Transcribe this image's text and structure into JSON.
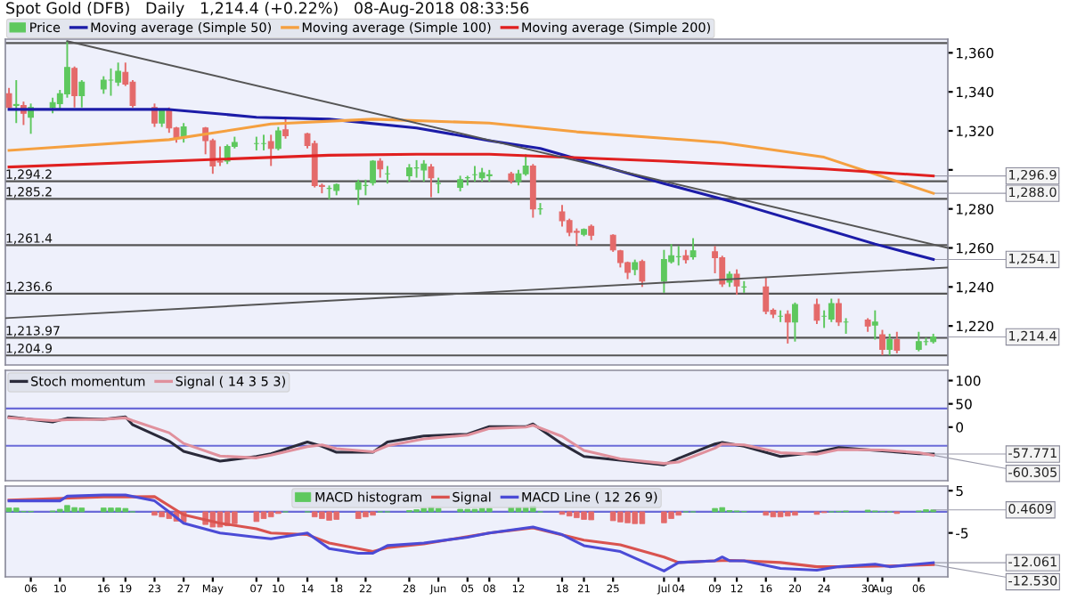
{
  "chart_data": [
    {
      "type": "candlestick",
      "title": "Spot Gold (DFB)   Daily   1,214.4 (+0.22%)   08-Aug-2018 08:33:56",
      "xlim": [
        "2018-04-02T12:00",
        "2018-08-10"
      ],
      "ylim": [
        1200,
        1367
      ],
      "yticks": [
        {
          "value": 1220,
          "label": "1,220"
        },
        {
          "value": 1240,
          "label": "1,240"
        },
        {
          "value": 1260,
          "label": "1,260"
        },
        {
          "value": 1280,
          "label": "1,280"
        },
        {
          "value": 1300,
          "label": null
        },
        {
          "value": 1320,
          "label": "1,320"
        },
        {
          "value": 1340,
          "label": "1,340"
        },
        {
          "value": 1360,
          "label": "1,360"
        }
      ],
      "tick_labels": "y",
      "legend": "top left",
      "series": [
        {
          "name": "Price",
          "color": "#5ec85e",
          "x": [
            "2018-04-03",
            "2018-04-04",
            "2018-04-05",
            "2018-04-06",
            "2018-04-09",
            "2018-04-10",
            "2018-04-11",
            "2018-04-12",
            "2018-04-13",
            "2018-04-16",
            "2018-04-17",
            "2018-04-18",
            "2018-04-19",
            "2018-04-20",
            "2018-04-23",
            "2018-04-24",
            "2018-04-25",
            "2018-04-26",
            "2018-04-27",
            "2018-04-30",
            "2018-05-01",
            "2018-05-02",
            "2018-05-03",
            "2018-05-04",
            "2018-05-07",
            "2018-05-08",
            "2018-05-09",
            "2018-05-10",
            "2018-05-11",
            "2018-05-14",
            "2018-05-15",
            "2018-05-16",
            "2018-05-17",
            "2018-05-18",
            "2018-05-21",
            "2018-05-22",
            "2018-05-23",
            "2018-05-24",
            "2018-05-25",
            "2018-05-28",
            "2018-05-29",
            "2018-05-30",
            "2018-05-31",
            "2018-06-01",
            "2018-06-04",
            "2018-06-05",
            "2018-06-06",
            "2018-06-07",
            "2018-06-08",
            "2018-06-11",
            "2018-06-12",
            "2018-06-13",
            "2018-06-14",
            "2018-06-15",
            "2018-06-18",
            "2018-06-19",
            "2018-06-20",
            "2018-06-21",
            "2018-06-22",
            "2018-06-25",
            "2018-06-26",
            "2018-06-27",
            "2018-06-28",
            "2018-06-29",
            "2018-07-02",
            "2018-07-03",
            "2018-07-04",
            "2018-07-05",
            "2018-07-06",
            "2018-07-09",
            "2018-07-10",
            "2018-07-11",
            "2018-07-12",
            "2018-07-13",
            "2018-07-16",
            "2018-07-17",
            "2018-07-18",
            "2018-07-19",
            "2018-07-20",
            "2018-07-23",
            "2018-07-24",
            "2018-07-25",
            "2018-07-26",
            "2018-07-27",
            "2018-07-30",
            "2018-07-31",
            "2018-08-01",
            "2018-08-02",
            "2018-08-03",
            "2018-08-06",
            "2018-08-07",
            "2018-08-08"
          ],
          "ohlc": [
            [
              1339,
              1342,
              1331,
              1332
            ],
            [
              1333,
              1346,
              1324,
              1333.5
            ],
            [
              1333,
              1335,
              1323,
              1329
            ],
            [
              1327,
              1334,
              1318.5,
              1332
            ],
            [
              1332,
              1337,
              1329,
              1334.5
            ],
            [
              1334,
              1341,
              1331,
              1339
            ],
            [
              1339,
              1366,
              1337,
              1352.5
            ],
            [
              1352,
              1353,
              1332,
              1338
            ],
            [
              1338,
              1346,
              1332,
              1345
            ],
            [
              1341.5,
              1348,
              1339,
              1346
            ],
            [
              1346,
              1352,
              1338,
              1346
            ],
            [
              1345,
              1355,
              1343,
              1350.5
            ],
            [
              1350,
              1355,
              1343,
              1344
            ],
            [
              1345,
              1346,
              1332,
              1333
            ],
            [
              1332,
              1334,
              1322,
              1324
            ],
            [
              1324,
              1331,
              1322,
              1330.5
            ],
            [
              1331,
              1332,
              1319,
              1321.5
            ],
            [
              1321.5,
              1322,
              1314,
              1316.5
            ],
            [
              1316.5,
              1324,
              1314,
              1322
            ],
            [
              1321.5,
              1322,
              1308,
              1315
            ],
            [
              1315,
              1316,
              1298,
              1302
            ],
            [
              1304.5,
              1312,
              1302,
              1304
            ],
            [
              1304.5,
              1313,
              1303,
              1312
            ],
            [
              1312,
              1317,
              1311,
              1314
            ],
            [
              1313.5,
              1317,
              1310,
              1313.5
            ],
            [
              1313.5,
              1318,
              1310,
              1313.5
            ],
            [
              1314.5,
              1318,
              1302,
              1311
            ],
            [
              1311,
              1322,
              1310,
              1320
            ],
            [
              1320.5,
              1327,
              1316,
              1317.5
            ],
            [
              1318.5,
              1319,
              1311,
              1312.5
            ],
            [
              1313.5,
              1315,
              1291,
              1292
            ],
            [
              1292,
              1293,
              1288,
              1291.5
            ],
            [
              1290.5,
              1292,
              1285,
              1290.5
            ],
            [
              1289.5,
              1293,
              1287,
              1292.5
            ],
            [
              1290,
              1295,
              1282,
              1293.5
            ],
            [
              1292,
              1295,
              1287,
              1292
            ],
            [
              1293.5,
              1305,
              1292,
              1304.5
            ],
            [
              1304.5,
              1306,
              1296,
              1300.5
            ],
            [
              1298,
              1302,
              1293,
              1298
            ],
            [
              1297,
              1303,
              1294,
              1301
            ],
            [
              1301,
              1305,
              1296,
              1301
            ],
            [
              1300,
              1305,
              1294,
              1303
            ],
            [
              1301.5,
              1303,
              1286,
              1296
            ],
            [
              1293,
              1296,
              1288,
              1293
            ],
            [
              1291,
              1297,
              1289,
              1295
            ],
            [
              1296,
              1297,
              1292,
              1296
            ],
            [
              1297.5,
              1302,
              1294,
              1297.5
            ],
            [
              1296,
              1301,
              1294,
              1298.5
            ],
            [
              1297,
              1300,
              1294,
              1297.5
            ],
            [
              1298,
              1299,
              1293,
              1294.5
            ],
            [
              1294,
              1300,
              1292,
              1298
            ],
            [
              1298,
              1308,
              1297,
              1302
            ],
            [
              1302,
              1303,
              1275.5,
              1280
            ],
            [
              1280,
              1283,
              1277,
              1280
            ],
            [
              1278.5,
              1282,
              1271,
              1274
            ],
            [
              1274,
              1275,
              1266,
              1268
            ],
            [
              1268.5,
              1270,
              1261,
              1268
            ],
            [
              1267,
              1270,
              1266,
              1269.5
            ],
            [
              1271,
              1272,
              1264,
              1266.5
            ],
            [
              1266.5,
              1267,
              1258,
              1259
            ],
            [
              1258.5,
              1259,
              1250,
              1252.5
            ],
            [
              1252.5,
              1253,
              1244,
              1247.5
            ],
            [
              1249,
              1254,
              1246,
              1252.5
            ],
            [
              1253,
              1254,
              1240,
              1243
            ],
            [
              1243,
              1259,
              1237,
              1254
            ],
            [
              1253,
              1262,
              1252,
              1256
            ],
            [
              1255.5,
              1261,
              1251,
              1255.5
            ],
            [
              1256,
              1259,
              1252,
              1254
            ],
            [
              1255.5,
              1265,
              1254,
              1258.5
            ],
            [
              1258,
              1261,
              1247,
              1255
            ],
            [
              1255,
              1256,
              1240,
              1241.5
            ],
            [
              1242.5,
              1248,
              1240,
              1246.5
            ],
            [
              1246.5,
              1249,
              1236,
              1240.5
            ],
            [
              1240,
              1243,
              1237,
              1240
            ],
            [
              1240,
              1245,
              1226,
              1227.5
            ],
            [
              1228,
              1229,
              1224,
              1226
            ],
            [
              1225,
              1228,
              1222,
              1225
            ],
            [
              1226,
              1228,
              1211,
              1222
            ],
            [
              1222,
              1232,
              1212,
              1231
            ],
            [
              1231,
              1234,
              1221,
              1223
            ],
            [
              1225,
              1228,
              1219,
              1225
            ],
            [
              1223.5,
              1234,
              1222,
              1231.5
            ],
            [
              1231.5,
              1234,
              1220,
              1222
            ],
            [
              1222,
              1224,
              1216,
              1222
            ],
            [
              1223,
              1224,
              1217,
              1220
            ],
            [
              1220.5,
              1228,
              1213,
              1222
            ],
            [
              1215.5,
              1218,
              1205,
              1208
            ],
            [
              1208,
              1216,
              1205,
              1213
            ],
            [
              1213,
              1217,
              1206,
              1207.5
            ],
            [
              1208,
              1217,
              1207,
              1212
            ],
            [
              1212,
              1214,
              1210,
              1212
            ],
            [
              1212,
              1216,
              1211,
              1214.4
            ]
          ],
          "colors": [
            "#e46a6a",
            "#5ec85e",
            "#e46a6a",
            "#5ec85e",
            "#5ec85e",
            "#5ec85e",
            "#5ec85e",
            "#e46a6a",
            "#5ec85e",
            "#5ec85e",
            "#5ec85e",
            "#5ec85e",
            "#e46a6a",
            "#e46a6a",
            "#e46a6a",
            "#5ec85e",
            "#e46a6a",
            "#e46a6a",
            "#5ec85e",
            "#e46a6a",
            "#e46a6a",
            "#e46a6a",
            "#5ec85e",
            "#5ec85e",
            "#5ec85e",
            "#5ec85e",
            "#e46a6a",
            "#5ec85e",
            "#e46a6a",
            "#e46a6a",
            "#e46a6a",
            "#e46a6a",
            "#5ec85e",
            "#5ec85e",
            "#5ec85e",
            "#5ec85e",
            "#5ec85e",
            "#e46a6a",
            "#5ec85e",
            "#5ec85e",
            "#5ec85e",
            "#5ec85e",
            "#e46a6a",
            "#5ec85e",
            "#5ec85e",
            "#5ec85e",
            "#5ec85e",
            "#5ec85e",
            "#5ec85e",
            "#e46a6a",
            "#5ec85e",
            "#5ec85e",
            "#e46a6a",
            "#5ec85e",
            "#e46a6a",
            "#e46a6a",
            "#e46a6a",
            "#5ec85e",
            "#e46a6a",
            "#e46a6a",
            "#e46a6a",
            "#e46a6a",
            "#5ec85e",
            "#e46a6a",
            "#5ec85e",
            "#5ec85e",
            "#5ec85e",
            "#e46a6a",
            "#5ec85e",
            "#e46a6a",
            "#e46a6a",
            "#5ec85e",
            "#e46a6a",
            "#5ec85e",
            "#e46a6a",
            "#e46a6a",
            "#5ec85e",
            "#e46a6a",
            "#5ec85e",
            "#e46a6a",
            "#5ec85e",
            "#5ec85e",
            "#e46a6a",
            "#5ec85e",
            "#e46a6a",
            "#5ec85e",
            "#e46a6a",
            "#5ec85e",
            "#e46a6a",
            "#5ec85e",
            "#5ec85e",
            "#5ec85e"
          ]
        },
        {
          "name": "Moving average (Simple 50)",
          "type": "line",
          "color": "#1c1ca8",
          "x": [
            "2018-04-03",
            "2018-04-25",
            "2018-05-07",
            "2018-05-17",
            "2018-05-29",
            "2018-06-08",
            "2018-06-15",
            "2018-07-02",
            "2018-07-12",
            "2018-07-31",
            "2018-08-08"
          ],
          "values": [
            1331,
            1331,
            1327,
            1326,
            1321.5,
            1315,
            1311,
            1293,
            1283,
            1262,
            1254.1
          ]
        },
        {
          "name": "Moving average (Simple 100)",
          "type": "line",
          "color": "#f5a040",
          "x": [
            "2018-04-03",
            "2018-04-25",
            "2018-05-09",
            "2018-05-23",
            "2018-06-08",
            "2018-06-20",
            "2018-07-10",
            "2018-07-24",
            "2018-08-08"
          ],
          "values": [
            1310,
            1315.5,
            1323.5,
            1326,
            1324,
            1319.5,
            1314,
            1306.5,
            1288.0
          ]
        },
        {
          "name": "Moving average (Simple 200)",
          "type": "line",
          "color": "#e02020",
          "x": [
            "2018-04-03",
            "2018-04-25",
            "2018-05-17",
            "2018-05-29",
            "2018-06-08",
            "2018-07-02",
            "2018-07-24",
            "2018-08-08"
          ],
          "values": [
            1301.5,
            1304.5,
            1307.5,
            1308,
            1308,
            1304.5,
            1300.5,
            1296.9
          ]
        },
        {
          "type": "line",
          "color": "#555555",
          "x": [
            "2018-04-11",
            "2018-08-10"
          ],
          "values": [
            1366,
            1260
          ]
        },
        {
          "type": "line",
          "color": "#555555",
          "x": [
            "2018-04-02T12:00",
            "2018-08-10"
          ],
          "values": [
            1224,
            1250
          ]
        }
      ],
      "ref_lines": [
        {
          "axis": "y",
          "value": 1365,
          "label": null,
          "color": "#555555"
        },
        {
          "axis": "y",
          "value": 1294.2,
          "label": "1,294.2",
          "color": "#555555"
        },
        {
          "axis": "y",
          "value": 1285.2,
          "label": "1,285.2",
          "color": "#555555"
        },
        {
          "axis": "y",
          "value": 1261.4,
          "label": "1,261.4",
          "color": "#555555"
        },
        {
          "axis": "y",
          "value": 1236.6,
          "label": "1,236.6",
          "color": "#555555"
        },
        {
          "axis": "y",
          "value": 1213.97,
          "label": "1,213.97",
          "color": "#555555"
        },
        {
          "axis": "y",
          "value": 1204.9,
          "label": "1,204.9",
          "color": "#555555"
        }
      ],
      "annotations": [
        {
          "text": "1,296.9",
          "x": "2018-08-08",
          "y": 1296.9
        },
        {
          "text": "1,288.0",
          "x": "2018-08-08",
          "y": 1288.0
        },
        {
          "text": "1,254.1",
          "x": "2018-08-08",
          "y": 1254.1
        },
        {
          "text": "1,214.4",
          "x": "2018-08-08",
          "y": 1214.4
        }
      ]
    },
    {
      "type": "line",
      "xlim": [
        "2018-04-02T12:00",
        "2018-08-10"
      ],
      "ylim": [
        -115,
        122
      ],
      "yticks": [
        100,
        50,
        0
      ],
      "tick_labels": "y",
      "legend": "top left",
      "series": [
        {
          "name": "Stoch momentum",
          "color": "#2a2a3a",
          "x": [
            "2018-04-03",
            "2018-04-09",
            "2018-04-11",
            "2018-04-16",
            "2018-04-19",
            "2018-04-20",
            "2018-04-25",
            "2018-04-27",
            "2018-05-02",
            "2018-05-07",
            "2018-05-09",
            "2018-05-14",
            "2018-05-16",
            "2018-05-18",
            "2018-05-23",
            "2018-05-25",
            "2018-05-30",
            "2018-06-05",
            "2018-06-08",
            "2018-06-13",
            "2018-06-14",
            "2018-06-18",
            "2018-06-21",
            "2018-06-26",
            "2018-07-02",
            "2018-07-04",
            "2018-07-09",
            "2018-07-10",
            "2018-07-13",
            "2018-07-18",
            "2018-07-23",
            "2018-07-26",
            "2018-08-01",
            "2018-08-06",
            "2018-08-08"
          ],
          "values": [
            22,
            11,
            19,
            17,
            22,
            5,
            -30,
            -52,
            -73,
            -63,
            -57,
            -32,
            -41,
            -54,
            -54,
            -32,
            -19,
            -15,
            1,
            1,
            7,
            -36,
            -63,
            -71,
            -81,
            -67,
            -36,
            -33,
            -41,
            -63,
            -54,
            -44,
            -51,
            -57,
            -57.771
          ]
        },
        {
          "name": "Signal ( 14 3 5 3)",
          "color": "#e0909c",
          "x": [
            "2018-04-03",
            "2018-04-09",
            "2018-04-11",
            "2018-04-16",
            "2018-04-19",
            "2018-04-20",
            "2018-04-25",
            "2018-04-27",
            "2018-05-02",
            "2018-05-07",
            "2018-05-09",
            "2018-05-14",
            "2018-05-16",
            "2018-05-18",
            "2018-05-23",
            "2018-05-25",
            "2018-05-30",
            "2018-06-05",
            "2018-06-08",
            "2018-06-13",
            "2018-06-14",
            "2018-06-18",
            "2018-06-21",
            "2018-06-26",
            "2018-07-02",
            "2018-07-04",
            "2018-07-09",
            "2018-07-10",
            "2018-07-13",
            "2018-07-18",
            "2018-07-23",
            "2018-07-26",
            "2018-08-01",
            "2018-08-06",
            "2018-08-08"
          ],
          "values": [
            20,
            14,
            16,
            17,
            20,
            14,
            -12,
            -35,
            -62,
            -66,
            -60,
            -42,
            -38,
            -46,
            -53,
            -40,
            -25,
            -17,
            -3,
            0,
            4,
            -20,
            -50,
            -68,
            -78,
            -75,
            -45,
            -36,
            -38,
            -55,
            -58,
            -48,
            -49,
            -55,
            -60.305
          ]
        }
      ],
      "ref_lines": [
        {
          "axis": "y",
          "value": 40,
          "label": null,
          "color": "#6a6ad8"
        },
        {
          "axis": "y",
          "value": -40,
          "label": null,
          "color": "#6a6ad8"
        }
      ],
      "annotations": [
        {
          "text": "-57.771",
          "x": "2018-08-08",
          "y": -57.771
        },
        {
          "text": "-60.305",
          "x": "2018-08-08",
          "y": -60.305
        }
      ]
    },
    {
      "type": "bar",
      "xlim": [
        "2018-04-02T12:00",
        "2018-08-10"
      ],
      "ylim": [
        -15.4,
        6.1
      ],
      "yticks": [
        5,
        -5
      ],
      "legend": "top",
      "xticks": [
        {
          "value": "2018-04-06",
          "label": "06"
        },
        {
          "value": "2018-04-10",
          "label": "10"
        },
        {
          "value": "2018-04-16",
          "label": "16"
        },
        {
          "value": "2018-04-19",
          "label": "19"
        },
        {
          "value": "2018-04-23",
          "label": "23"
        },
        {
          "value": "2018-04-27",
          "label": "27"
        },
        {
          "value": "2018-05-01",
          "label": "May"
        },
        {
          "value": "2018-05-07",
          "label": "07"
        },
        {
          "value": "2018-05-10",
          "label": "10"
        },
        {
          "value": "2018-05-14",
          "label": "14"
        },
        {
          "value": "2018-05-18",
          "label": "18"
        },
        {
          "value": "2018-05-22",
          "label": "22"
        },
        {
          "value": "2018-05-28",
          "label": "28"
        },
        {
          "value": "2018-06-01",
          "label": "Jun"
        },
        {
          "value": "2018-06-05",
          "label": "05"
        },
        {
          "value": "2018-06-08",
          "label": "08"
        },
        {
          "value": "2018-06-12",
          "label": "12"
        },
        {
          "value": "2018-06-18",
          "label": "18"
        },
        {
          "value": "2018-06-21",
          "label": "21"
        },
        {
          "value": "2018-06-25",
          "label": "25"
        },
        {
          "value": "2018-07-02",
          "label": "Jul"
        },
        {
          "value": "2018-07-04",
          "label": "04"
        },
        {
          "value": "2018-07-09",
          "label": "09"
        },
        {
          "value": "2018-07-12",
          "label": "12"
        },
        {
          "value": "2018-07-16",
          "label": "16"
        },
        {
          "value": "2018-07-20",
          "label": "20"
        },
        {
          "value": "2018-07-24",
          "label": "24"
        },
        {
          "value": "2018-07-30",
          "label": "30"
        },
        {
          "value": "2018-08-01",
          "label": "Aug"
        },
        {
          "value": "2018-08-06",
          "label": "06"
        }
      ],
      "series": [
        {
          "name": "MACD histogram",
          "color": "#5ec85e",
          "x": [
            "2018-04-03",
            "2018-04-04",
            "2018-04-05",
            "2018-04-06",
            "2018-04-09",
            "2018-04-10",
            "2018-04-11",
            "2018-04-12",
            "2018-04-13",
            "2018-04-16",
            "2018-04-17",
            "2018-04-18",
            "2018-04-19",
            "2018-04-20",
            "2018-04-23",
            "2018-04-24",
            "2018-04-25",
            "2018-04-26",
            "2018-04-27",
            "2018-04-30",
            "2018-05-01",
            "2018-05-02",
            "2018-05-03",
            "2018-05-04",
            "2018-05-07",
            "2018-05-08",
            "2018-05-09",
            "2018-05-10",
            "2018-05-11",
            "2018-05-14",
            "2018-05-15",
            "2018-05-16",
            "2018-05-17",
            "2018-05-18",
            "2018-05-21",
            "2018-05-22",
            "2018-05-23",
            "2018-05-24",
            "2018-05-25",
            "2018-05-28",
            "2018-05-29",
            "2018-05-30",
            "2018-05-31",
            "2018-06-01",
            "2018-06-04",
            "2018-06-05",
            "2018-06-06",
            "2018-06-07",
            "2018-06-08",
            "2018-06-11",
            "2018-06-12",
            "2018-06-13",
            "2018-06-14",
            "2018-06-15",
            "2018-06-18",
            "2018-06-19",
            "2018-06-20",
            "2018-06-21",
            "2018-06-22",
            "2018-06-25",
            "2018-06-26",
            "2018-06-27",
            "2018-06-28",
            "2018-06-29",
            "2018-07-02",
            "2018-07-03",
            "2018-07-04",
            "2018-07-05",
            "2018-07-06",
            "2018-07-09",
            "2018-07-10",
            "2018-07-11",
            "2018-07-12",
            "2018-07-13",
            "2018-07-16",
            "2018-07-17",
            "2018-07-18",
            "2018-07-19",
            "2018-07-20",
            "2018-07-23",
            "2018-07-24",
            "2018-07-25",
            "2018-07-26",
            "2018-07-27",
            "2018-07-30",
            "2018-07-31",
            "2018-08-01",
            "2018-08-02",
            "2018-08-03",
            "2018-08-06",
            "2018-08-07",
            "2018-08-08"
          ],
          "values": [
            0.9,
            0.9,
            0.1,
            0.1,
            0.2,
            0.6,
            1.5,
            1.0,
            0.9,
            0.9,
            0.9,
            0.9,
            0.8,
            0,
            -0.8,
            -1.2,
            -1.6,
            -2.2,
            -2.4,
            -3.0,
            -3.6,
            -3.6,
            -3.3,
            -2.8,
            -2.3,
            -1.6,
            -1.2,
            -0.4,
            0,
            0,
            -1.2,
            -1.6,
            -2.0,
            -1.8,
            -1.6,
            -1.2,
            -0.8,
            0,
            0,
            0.3,
            0.5,
            0.8,
            1.0,
            0.8,
            0.6,
            0.6,
            0.6,
            0.8,
            0.8,
            1.0,
            1.0,
            1.0,
            1.3,
            0,
            -0.6,
            -1.0,
            -1.4,
            -1.8,
            -1.9,
            -2.1,
            -2.4,
            -2.6,
            -2.8,
            -2.8,
            -2.6,
            -1.6,
            -0.8,
            0,
            0,
            0.8,
            1.0,
            0.3,
            0.2,
            0.1,
            -0.8,
            -1.2,
            -1.2,
            -1.0,
            -0.8,
            -0.6,
            -0.2,
            0,
            0.1,
            0.2,
            0.4,
            0.2,
            0.1,
            0,
            -0.4,
            0.2,
            0.5,
            0.4609
          ],
          "colors": [
            "#5ec85e",
            "#5ec85e",
            "#5ec85e",
            "#5ec85e",
            "#5ec85e",
            "#5ec85e",
            "#5ec85e",
            "#5ec85e",
            "#5ec85e",
            "#5ec85e",
            "#5ec85e",
            "#5ec85e",
            "#5ec85e",
            "#5ec85e",
            "#e46a6a",
            "#e46a6a",
            "#e46a6a",
            "#e46a6a",
            "#e46a6a",
            "#e46a6a",
            "#e46a6a",
            "#e46a6a",
            "#e46a6a",
            "#e46a6a",
            "#e46a6a",
            "#e46a6a",
            "#e46a6a",
            "#e46a6a",
            "#5ec85e",
            "#5ec85e",
            "#e46a6a",
            "#e46a6a",
            "#e46a6a",
            "#e46a6a",
            "#e46a6a",
            "#e46a6a",
            "#e46a6a",
            "#5ec85e",
            "#5ec85e",
            "#5ec85e",
            "#5ec85e",
            "#5ec85e",
            "#5ec85e",
            "#5ec85e",
            "#5ec85e",
            "#5ec85e",
            "#5ec85e",
            "#5ec85e",
            "#5ec85e",
            "#5ec85e",
            "#5ec85e",
            "#5ec85e",
            "#5ec85e",
            "#5ec85e",
            "#e46a6a",
            "#e46a6a",
            "#e46a6a",
            "#e46a6a",
            "#e46a6a",
            "#e46a6a",
            "#e46a6a",
            "#e46a6a",
            "#e46a6a",
            "#e46a6a",
            "#e46a6a",
            "#e46a6a",
            "#e46a6a",
            "#5ec85e",
            "#5ec85e",
            "#5ec85e",
            "#5ec85e",
            "#5ec85e",
            "#5ec85e",
            "#5ec85e",
            "#e46a6a",
            "#e46a6a",
            "#e46a6a",
            "#e46a6a",
            "#e46a6a",
            "#e46a6a",
            "#e46a6a",
            "#5ec85e",
            "#5ec85e",
            "#5ec85e",
            "#5ec85e",
            "#5ec85e",
            "#5ec85e",
            "#5ec85e",
            "#e46a6a",
            "#5ec85e",
            "#5ec85e",
            "#5ec85e"
          ]
        },
        {
          "name": "Signal",
          "type": "line",
          "color": "#d9534f",
          "x": [
            "2018-04-03",
            "2018-04-16",
            "2018-04-23",
            "2018-04-27",
            "2018-05-02",
            "2018-05-07",
            "2018-05-09",
            "2018-05-14",
            "2018-05-17",
            "2018-05-21",
            "2018-05-23",
            "2018-05-25",
            "2018-05-30",
            "2018-06-08",
            "2018-06-14",
            "2018-06-21",
            "2018-06-26",
            "2018-07-02",
            "2018-07-04",
            "2018-07-09",
            "2018-07-11",
            "2018-07-13",
            "2018-07-18",
            "2018-07-23",
            "2018-07-26",
            "2018-08-02",
            "2018-08-08"
          ],
          "values": [
            2.8,
            3.5,
            3.6,
            -0.7,
            -2.7,
            -4.0,
            -5.0,
            -5.4,
            -7.4,
            -8.7,
            -9.4,
            -8.5,
            -7.6,
            -5.0,
            -3.8,
            -6.7,
            -7.8,
            -10.7,
            -12.0,
            -11.6,
            -11.5,
            -11.6,
            -12.0,
            -13.0,
            -13.0,
            -12.8,
            -12.53
          ]
        },
        {
          "name": "MACD Line ( 12 26 9)",
          "type": "line",
          "color": "#4b4bd6",
          "x": [
            "2018-04-03",
            "2018-04-10",
            "2018-04-11",
            "2018-04-16",
            "2018-04-19",
            "2018-04-23",
            "2018-04-25",
            "2018-04-27",
            "2018-05-02",
            "2018-05-07",
            "2018-05-09",
            "2018-05-14",
            "2018-05-17",
            "2018-05-21",
            "2018-05-23",
            "2018-05-25",
            "2018-05-30",
            "2018-06-05",
            "2018-06-08",
            "2018-06-14",
            "2018-06-18",
            "2018-06-21",
            "2018-06-26",
            "2018-07-02",
            "2018-07-04",
            "2018-07-09",
            "2018-07-10",
            "2018-07-11",
            "2018-07-13",
            "2018-07-18",
            "2018-07-23",
            "2018-07-26",
            "2018-07-31",
            "2018-08-02",
            "2018-08-08"
          ],
          "values": [
            2.6,
            2.6,
            3.7,
            4.0,
            4.0,
            2.6,
            0,
            -2.7,
            -5.0,
            -6.0,
            -6.4,
            -5.0,
            -8.7,
            -9.8,
            -9.8,
            -8.0,
            -7.4,
            -6.0,
            -5.0,
            -3.6,
            -5.4,
            -8.0,
            -9.4,
            -14.0,
            -12.0,
            -11.6,
            -10.7,
            -11.6,
            -11.6,
            -13.4,
            -13.8,
            -13.0,
            -12.4,
            -13.0,
            -12.061
          ]
        }
      ],
      "ref_lines": [
        {
          "axis": "y",
          "value": 0,
          "label": null,
          "color": "#6a6ad8"
        }
      ],
      "annotations": [
        {
          "text": "0.4609",
          "x": "2018-08-08",
          "y": 0.4609
        },
        {
          "text": "-12.061",
          "x": "2018-08-08",
          "y": -12.061
        },
        {
          "text": "-12.530",
          "x": "2018-08-08",
          "y": -12.53
        }
      ]
    }
  ]
}
